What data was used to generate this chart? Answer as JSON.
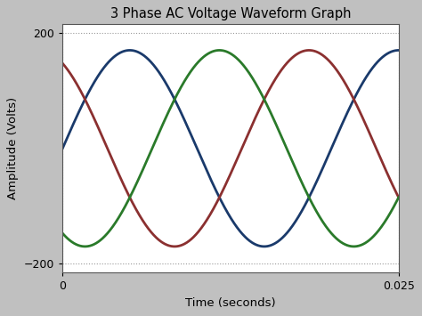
{
  "title": "3 Phase AC Voltage Waveform Graph",
  "xlabel": "Time (seconds)",
  "ylabel": "Amplitude (Volts)",
  "xlim": [
    0,
    0.025
  ],
  "ylim": [
    -215,
    215
  ],
  "amplitude": 170,
  "frequency": 50,
  "phase_offsets_deg": [
    0,
    120,
    -120
  ],
  "colors": [
    "#1a3a6b",
    "#8b3030",
    "#2a7a2a"
  ],
  "linewidth": 2.0,
  "figure_bg_color": "#c0c0c0",
  "axes_bg_color": "#ffffff",
  "grid_color": "#999999",
  "title_fontsize": 10.5,
  "label_fontsize": 9.5,
  "tick_fontsize": 9,
  "yticks": [
    -200,
    200
  ],
  "xticks": [
    0,
    0.025
  ],
  "num_points": 2000
}
